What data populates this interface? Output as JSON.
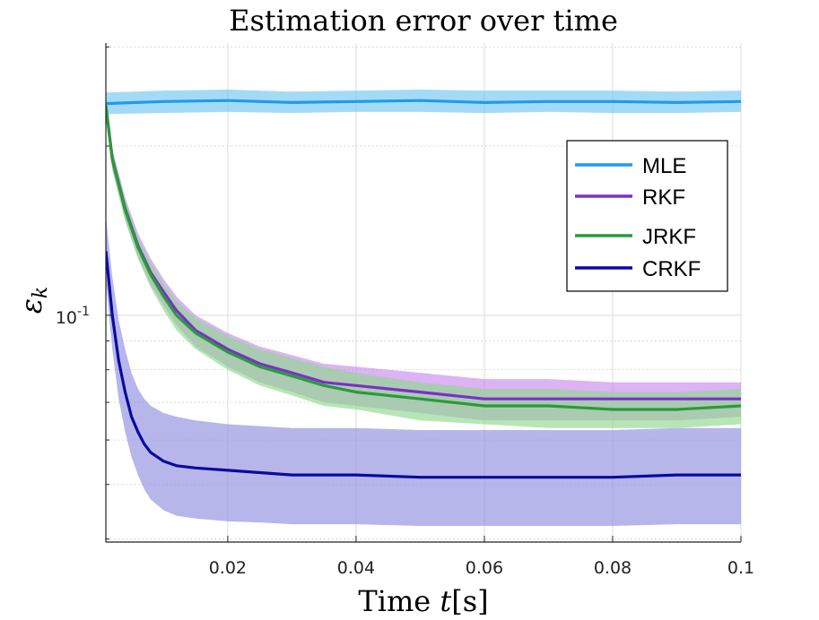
{
  "chart_data": {
    "type": "line",
    "title": "Estimation error over time",
    "xlabel_text": "Time ",
    "xlabel_var": "t",
    "xlabel_unit": "[s]",
    "ylabel": "ε",
    "ylabel_sub": "k",
    "xlim": [
      0.001,
      0.1
    ],
    "ylim": [
      0.0395,
      0.305
    ],
    "yscale": "log",
    "xticks": [
      0.02,
      0.04,
      0.06,
      0.08,
      0.1
    ],
    "xtick_labels": [
      "0.02",
      "0.04",
      "0.06",
      "0.08",
      "0.1"
    ],
    "ytick_major": 0.1,
    "ytick_label_base": "10",
    "ytick_label_exp": "-1",
    "grid": true,
    "legend_position": "top-right",
    "series": [
      {
        "name": "MLE",
        "color": "#1f9be8",
        "band_color": "#72c8f2",
        "x": [
          0.001,
          0.01,
          0.02,
          0.03,
          0.04,
          0.05,
          0.06,
          0.07,
          0.08,
          0.09,
          0.1
        ],
        "mean": [
          0.238,
          0.24,
          0.241,
          0.239,
          0.24,
          0.241,
          0.239,
          0.24,
          0.24,
          0.239,
          0.24
        ],
        "lower": [
          0.228,
          0.229,
          0.23,
          0.229,
          0.23,
          0.23,
          0.229,
          0.23,
          0.229,
          0.229,
          0.23
        ],
        "upper": [
          0.249,
          0.251,
          0.252,
          0.25,
          0.251,
          0.252,
          0.251,
          0.251,
          0.251,
          0.25,
          0.251
        ]
      },
      {
        "name": "RKF",
        "color": "#7b2fc9",
        "band_color": "#c98af0",
        "x": [
          0.001,
          0.002,
          0.004,
          0.006,
          0.008,
          0.01,
          0.012,
          0.015,
          0.02,
          0.025,
          0.03,
          0.035,
          0.04,
          0.05,
          0.06,
          0.07,
          0.08,
          0.09,
          0.1
        ],
        "mean": [
          0.236,
          0.19,
          0.155,
          0.133,
          0.119,
          0.11,
          0.102,
          0.094,
          0.087,
          0.082,
          0.079,
          0.076,
          0.075,
          0.073,
          0.071,
          0.071,
          0.071,
          0.071,
          0.071
        ],
        "lower": [
          0.226,
          0.182,
          0.148,
          0.127,
          0.113,
          0.104,
          0.096,
          0.088,
          0.081,
          0.076,
          0.073,
          0.07,
          0.069,
          0.067,
          0.065,
          0.065,
          0.065,
          0.065,
          0.066
        ],
        "upper": [
          0.246,
          0.198,
          0.162,
          0.14,
          0.126,
          0.116,
          0.108,
          0.1,
          0.093,
          0.088,
          0.085,
          0.082,
          0.081,
          0.079,
          0.077,
          0.077,
          0.076,
          0.076,
          0.076
        ]
      },
      {
        "name": "JRKF",
        "color": "#2a9a3a",
        "band_color": "#8fd98d",
        "x": [
          0.001,
          0.002,
          0.004,
          0.006,
          0.008,
          0.01,
          0.012,
          0.015,
          0.02,
          0.025,
          0.03,
          0.035,
          0.04,
          0.05,
          0.06,
          0.07,
          0.08,
          0.09,
          0.1
        ],
        "mean": [
          0.236,
          0.189,
          0.154,
          0.132,
          0.118,
          0.108,
          0.1,
          0.093,
          0.086,
          0.081,
          0.078,
          0.075,
          0.073,
          0.071,
          0.069,
          0.069,
          0.068,
          0.068,
          0.069
        ],
        "lower": [
          0.226,
          0.181,
          0.147,
          0.126,
          0.112,
          0.102,
          0.094,
          0.087,
          0.08,
          0.075,
          0.072,
          0.069,
          0.068,
          0.065,
          0.064,
          0.063,
          0.063,
          0.063,
          0.064
        ],
        "upper": [
          0.246,
          0.197,
          0.161,
          0.138,
          0.124,
          0.114,
          0.106,
          0.099,
          0.092,
          0.087,
          0.084,
          0.081,
          0.079,
          0.076,
          0.074,
          0.074,
          0.073,
          0.073,
          0.074
        ]
      },
      {
        "name": "CRKF",
        "color": "#0a0aa0",
        "band_color": "#8f8fe0",
        "x": [
          0.001,
          0.002,
          0.003,
          0.004,
          0.005,
          0.006,
          0.007,
          0.008,
          0.01,
          0.012,
          0.015,
          0.02,
          0.025,
          0.03,
          0.04,
          0.05,
          0.06,
          0.07,
          0.08,
          0.09,
          0.1
        ],
        "mean": [
          0.13,
          0.1,
          0.083,
          0.073,
          0.066,
          0.062,
          0.059,
          0.057,
          0.055,
          0.054,
          0.0535,
          0.053,
          0.0525,
          0.052,
          0.052,
          0.0515,
          0.0515,
          0.0515,
          0.0515,
          0.052,
          0.052
        ],
        "lower": [
          0.115,
          0.087,
          0.071,
          0.062,
          0.056,
          0.052,
          0.049,
          0.047,
          0.045,
          0.044,
          0.0435,
          0.043,
          0.0428,
          0.0425,
          0.0425,
          0.0422,
          0.0422,
          0.0422,
          0.0422,
          0.0425,
          0.0425
        ],
        "upper": [
          0.15,
          0.117,
          0.098,
          0.087,
          0.079,
          0.074,
          0.071,
          0.069,
          0.067,
          0.066,
          0.065,
          0.064,
          0.0635,
          0.063,
          0.063,
          0.0625,
          0.0625,
          0.0625,
          0.0625,
          0.063,
          0.063
        ]
      }
    ]
  }
}
